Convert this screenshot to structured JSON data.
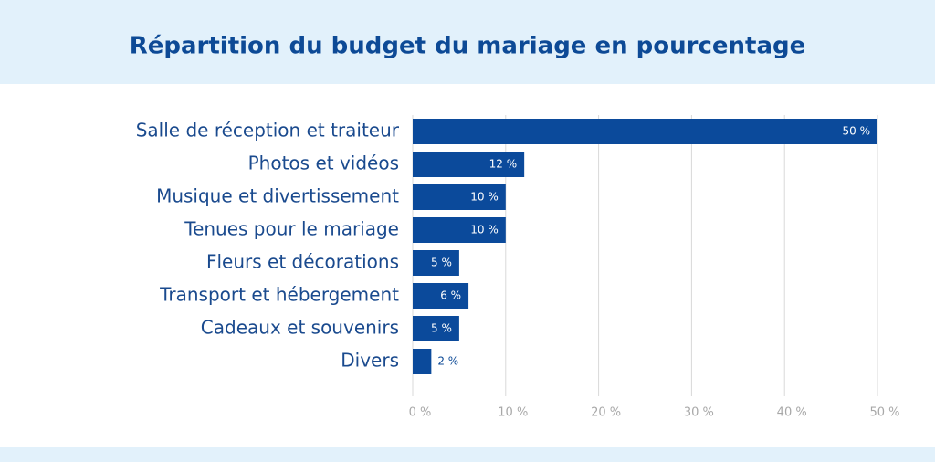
{
  "chart_data": {
    "type": "barh",
    "title": "Répartition du budget du mariage en pourcentage",
    "categories": [
      "Salle de réception et traiteur",
      "Photos et vidéos",
      "Musique et divertissement",
      "Tenues pour le mariage",
      "Fleurs et décorations",
      "Transport et hébergement",
      "Cadeaux et souvenirs",
      "Divers"
    ],
    "values": [
      50,
      12,
      10,
      10,
      5,
      6,
      5,
      2
    ],
    "value_labels": [
      "50 %",
      "12 %",
      "10 %",
      "10 %",
      "5 %",
      "6 %",
      "5 %",
      "2 %"
    ],
    "color": "#0b4a9b",
    "xlim": [
      0,
      50
    ],
    "xticks": [
      {
        "value": 0,
        "label": "0 %"
      },
      {
        "value": 10,
        "label": "10 %"
      },
      {
        "value": 20,
        "label": "20 %"
      },
      {
        "value": 30,
        "label": "30 %"
      },
      {
        "value": 40,
        "label": "40 %"
      },
      {
        "value": 50,
        "label": "50 %"
      }
    ],
    "grid": true
  }
}
